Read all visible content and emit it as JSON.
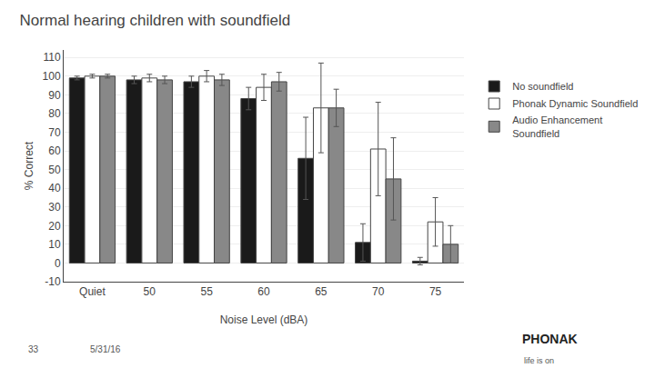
{
  "chart_data": {
    "type": "bar",
    "title": "Normal hearing children with soundfield",
    "xlabel": "Noise Level (dBA)",
    "ylabel": "% Correct",
    "categories": [
      "Quiet",
      "50",
      "55",
      "60",
      "65",
      "70",
      "75"
    ],
    "series": [
      {
        "name": "No soundfield",
        "color": "#1a1a1a",
        "values": [
          99,
          98,
          97,
          88,
          56,
          11,
          1
        ],
        "errors": [
          1,
          2,
          3,
          6,
          22,
          10,
          2
        ]
      },
      {
        "name": "Phonak Dynamic Soundfield",
        "color": "#ffffff",
        "values": [
          100,
          99,
          100,
          94,
          83,
          61,
          22
        ],
        "errors": [
          1,
          2,
          3,
          7,
          24,
          25,
          13
        ]
      },
      {
        "name": "Audio Enhancement\nSoundfield",
        "color": "#888888",
        "values": [
          100,
          98,
          98,
          97,
          83,
          45,
          10
        ],
        "errors": [
          1,
          2,
          3,
          5,
          10,
          22,
          10
        ]
      }
    ],
    "ylim": [
      -10,
      114
    ],
    "yticks": [
      -10,
      0,
      10,
      20,
      30,
      40,
      50,
      60,
      70,
      80,
      90,
      100,
      110
    ],
    "grid": true,
    "legend": "right",
    "annotations": [
      "33",
      "5/31/16",
      "PHONAK",
      "life is on"
    ]
  }
}
